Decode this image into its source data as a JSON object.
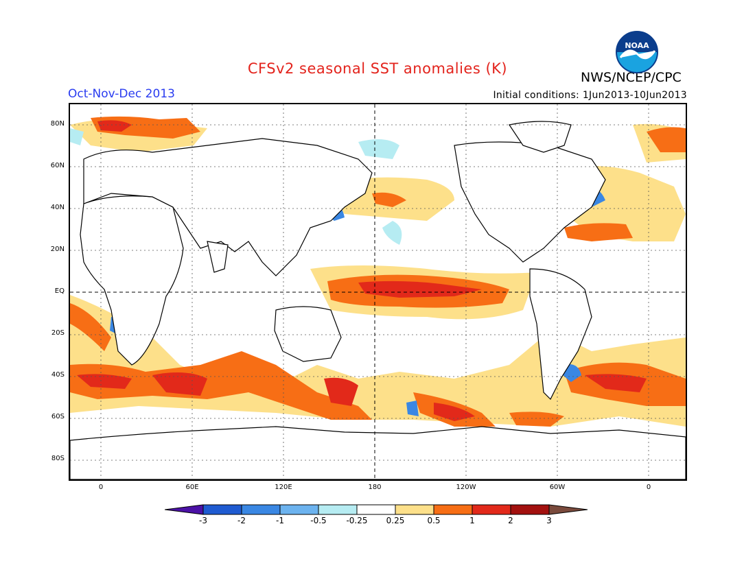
{
  "header": {
    "title": "CFSv2 seasonal SST anomalies (K)",
    "period": "Oct-Nov-Dec 2013",
    "initial_conditions": "Initial conditions: 1Jun2013-10Jun2013",
    "agency": "NWS/NCEP/CPC",
    "logo_text": "NOAA"
  },
  "map": {
    "lat_labels": [
      "80N",
      "60N",
      "40N",
      "20N",
      "EQ",
      "20S",
      "40S",
      "60S",
      "80S"
    ],
    "lon_labels": [
      "0",
      "60E",
      "120E",
      "180",
      "120W",
      "60W",
      "0"
    ],
    "colors": {
      "cold3": "#4b11a6",
      "cold2": "#1f5bd1",
      "cold1": "#3a87e3",
      "cold05": "#6cb3ef",
      "cold025": "#b6ecf2",
      "neutral": "#ffffff",
      "warm025": "#fde08a",
      "warm05": "#f76e15",
      "warm1": "#e2291a",
      "warm2": "#a3110f",
      "warm3": "#7a4a3c"
    }
  },
  "colorbar": {
    "labels": [
      "-3",
      "-2",
      "-1",
      "-0.5",
      "-0.25",
      "0.25",
      "0.5",
      "1",
      "2",
      "3"
    ],
    "colors": [
      "#1f5bd1",
      "#3a87e3",
      "#6cb3ef",
      "#b6ecf2",
      "#ffffff",
      "#fde08a",
      "#f76e15",
      "#e2291a",
      "#a3110f"
    ],
    "low_end_color": "#4b11a6",
    "high_end_color": "#7a4a3c"
  }
}
